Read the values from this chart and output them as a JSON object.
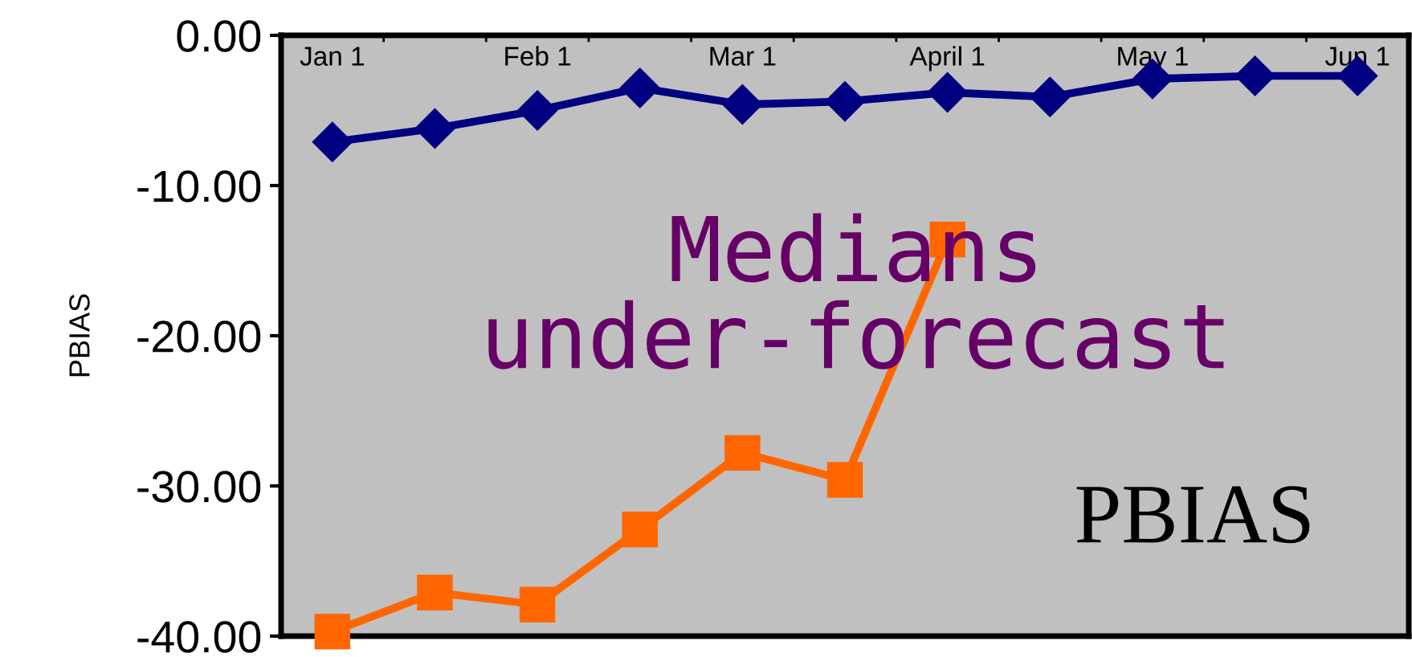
{
  "chart_data": {
    "type": "line",
    "ylabel": "PBIAS",
    "categories": [
      "Jan 1",
      null,
      "Feb 1",
      null,
      "Mar 1",
      null,
      "April 1",
      null,
      "May 1",
      null,
      "Jun 1"
    ],
    "series": [
      {
        "color": "#000080",
        "marker": "diamond",
        "values": [
          -7.1,
          -6.2,
          -5.0,
          -3.5,
          -4.6,
          -4.4,
          -3.8,
          -4.1,
          -2.9,
          -2.7,
          -2.7
        ]
      },
      {
        "color": "#ff6600",
        "marker": "square",
        "values": [
          -39.7,
          -37.1,
          -37.9,
          -32.9,
          -27.8,
          -29.6,
          -13.6,
          null,
          null,
          null,
          null
        ]
      }
    ],
    "ylim": [
      -40,
      0
    ],
    "yticks": [
      {
        "value": -40,
        "label": "-40.00"
      },
      {
        "value": -30,
        "label": "-30.00"
      },
      {
        "value": -20,
        "label": "-20.00"
      },
      {
        "value": -10,
        "label": "-10.00"
      },
      {
        "value": 0,
        "label": "0.00"
      }
    ],
    "grid": false,
    "legend": false,
    "line_style": "solid",
    "annotations": [
      "Medians\nunder-forecast",
      "PBIAS"
    ]
  }
}
